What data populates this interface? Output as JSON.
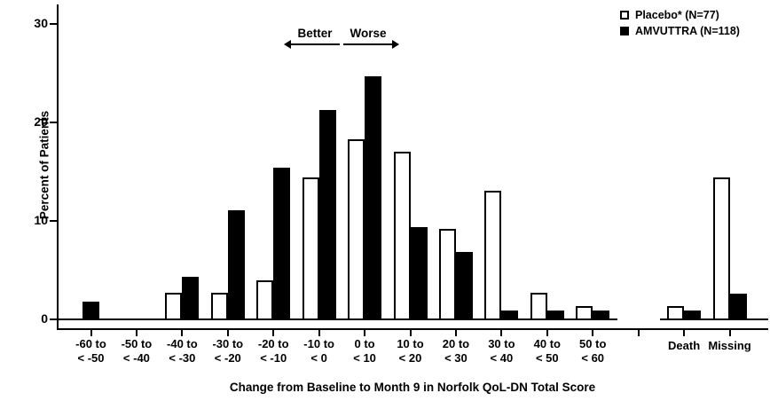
{
  "chart_data": {
    "type": "bar",
    "title": "",
    "xlabel": "Change from Baseline to Month 9 in Norfolk QoL-DN Total Score",
    "ylabel": "Percent of Patients",
    "ylim": [
      0,
      32
    ],
    "yticks": [
      0,
      10,
      20,
      30
    ],
    "grid": "off",
    "legend_position": "top-right",
    "axis_break_after_category": 11,
    "categories": [
      [
        "-60 to",
        "< -50"
      ],
      [
        "-50 to",
        "< -40"
      ],
      [
        "-40 to",
        "< -30"
      ],
      [
        "-30 to",
        "< -20"
      ],
      [
        "-20 to",
        "< -10"
      ],
      [
        "-10 to",
        "< 0"
      ],
      [
        "0 to",
        "< 10"
      ],
      [
        "10 to",
        "< 20"
      ],
      [
        "20 to",
        "< 30"
      ],
      [
        "30 to",
        "< 40"
      ],
      [
        "40 to",
        "< 50"
      ],
      [
        "50 to",
        "< 60"
      ],
      [
        "Death"
      ],
      [
        "Missing"
      ]
    ],
    "series": [
      {
        "name": "Placebo* (N=77)",
        "fill": "#ffffff",
        "values": [
          0,
          0,
          2.6,
          2.6,
          3.9,
          14.3,
          18.2,
          16.9,
          9.1,
          13.0,
          2.6,
          1.3,
          1.3,
          14.3
        ]
      },
      {
        "name": "AMVUTTRA (N=118)",
        "fill": "#000000",
        "values": [
          1.7,
          0,
          4.2,
          11.0,
          15.3,
          21.2,
          24.6,
          9.3,
          6.8,
          0.8,
          0.8,
          0.8,
          0.8,
          2.5
        ]
      }
    ],
    "annotations": {
      "better": "Better",
      "worse": "Worse"
    },
    "colors": {
      "axis": "#000000",
      "text": "#000000",
      "background": "#ffffff"
    }
  }
}
